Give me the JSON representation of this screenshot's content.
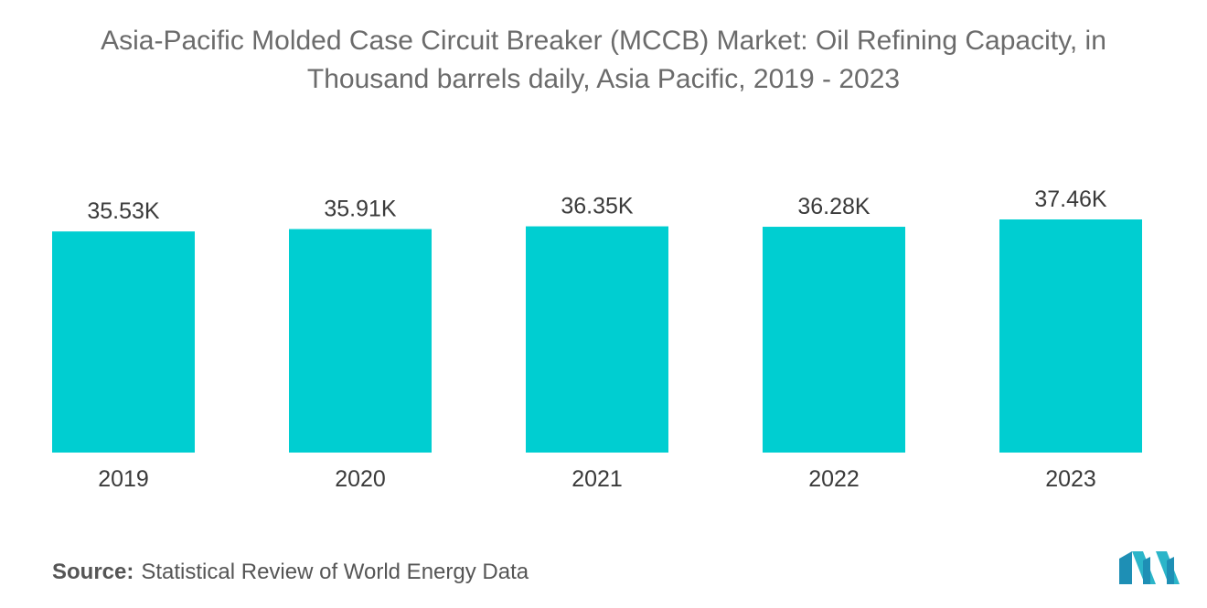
{
  "title_line1": "Asia-Pacific Molded Case Circuit Breaker (MCCB) Market: Oil Refining Capacity, in",
  "title_line2": "Thousand barrels daily, Asia Pacific, 2019 - 2023",
  "source_label": "Source:",
  "source_text": "Statistical Review of World Energy Data",
  "logo_icon": "mordor-intelligence-logo-icon",
  "colors": {
    "bar": "#00ced1",
    "text": "#3a3a3a",
    "title": "#6b6b6b"
  },
  "chart_data": {
    "type": "bar",
    "title": "Asia-Pacific Molded Case Circuit Breaker (MCCB) Market: Oil Refining Capacity, in Thousand barrels daily, Asia Pacific, 2019 - 2023",
    "categories": [
      "2019",
      "2020",
      "2021",
      "2022",
      "2023"
    ],
    "values": [
      35.53,
      35.91,
      36.35,
      36.28,
      37.46
    ],
    "labels": [
      "35.53K",
      "35.91K",
      "36.35K",
      "36.28K",
      "37.46K"
    ],
    "unit": "K",
    "xlabel": "",
    "ylabel": "",
    "ylim": [
      0,
      37.46
    ],
    "grid": false,
    "legend": "none"
  }
}
